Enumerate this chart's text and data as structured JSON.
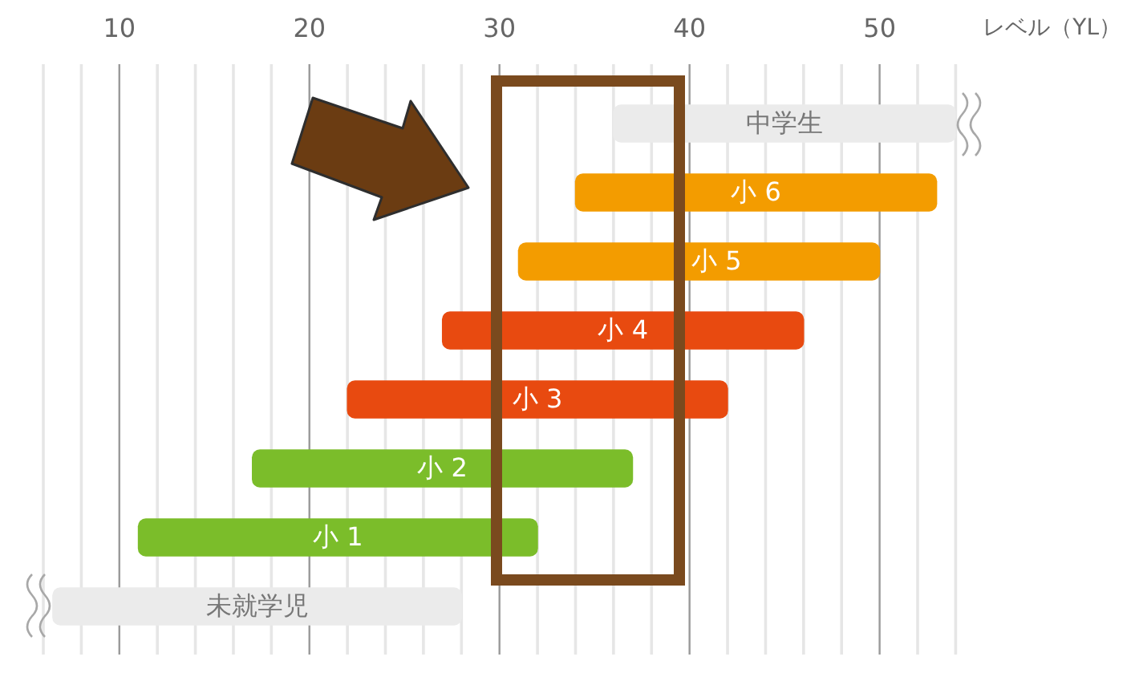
{
  "chart_data": {
    "type": "bar",
    "orientation": "horizontal",
    "xlabel": "レベル（YL）",
    "categories": [
      "中学生",
      "小 6",
      "小 5",
      "小 4",
      "小 3",
      "小 2",
      "小 1",
      "未就学児"
    ],
    "base": [
      36,
      34,
      31,
      27,
      22,
      17,
      11,
      6.5
    ],
    "values": [
      18,
      19,
      19,
      19,
      20,
      20,
      21,
      21.5
    ],
    "colors": [
      "#ebebeb",
      "#f39c00",
      "#f39c00",
      "#e84a10",
      "#e84a10",
      "#7bbd2a",
      "#7bbd2a",
      "#ebebeb"
    ],
    "xlim": [
      6,
      54
    ],
    "xticks": [
      {
        "value": 6,
        "label": null
      },
      {
        "value": 8,
        "label": null
      },
      10,
      {
        "value": 12,
        "label": null
      },
      {
        "value": 14,
        "label": null
      },
      {
        "value": 16,
        "label": null
      },
      {
        "value": 18,
        "label": null
      },
      20,
      {
        "value": 22,
        "label": null
      },
      {
        "value": 24,
        "label": null
      },
      {
        "value": 26,
        "label": null
      },
      {
        "value": 28,
        "label": null
      },
      30,
      {
        "value": 32,
        "label": null
      },
      {
        "value": 34,
        "label": null
      },
      {
        "value": 36,
        "label": null
      },
      {
        "value": 38,
        "label": null
      },
      40,
      {
        "value": 42,
        "label": null
      },
      {
        "value": 44,
        "label": null
      },
      {
        "value": 46,
        "label": null
      },
      {
        "value": 48,
        "label": null
      },
      50,
      {
        "value": 52,
        "label": null
      },
      {
        "value": 54,
        "label": null
      }
    ],
    "grid": "x",
    "tick_labels": "x"
  }
}
